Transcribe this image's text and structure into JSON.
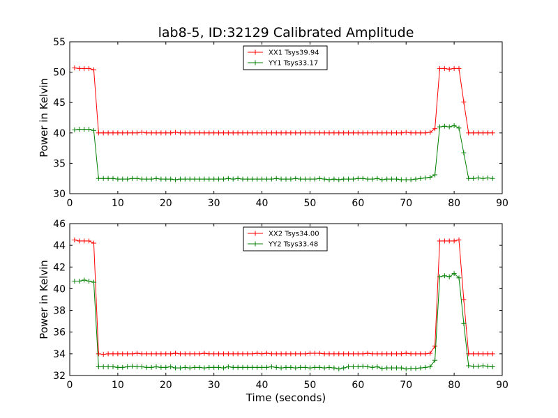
{
  "chart_data": [
    {
      "type": "line",
      "title": "lab8-5, ID:32129 Calibrated Amplitude",
      "xlabel": "",
      "ylabel": "Power in Kelvin",
      "xlim": [
        0,
        90
      ],
      "ylim": [
        30,
        55
      ],
      "xticks": [
        0,
        10,
        20,
        30,
        40,
        50,
        60,
        70,
        80,
        90
      ],
      "yticks": [
        30,
        35,
        40,
        45,
        50,
        55
      ],
      "grid": false,
      "legend": "top-center",
      "x": [
        1,
        2,
        3,
        4,
        5,
        6,
        7,
        8,
        9,
        10,
        11,
        12,
        13,
        14,
        15,
        16,
        17,
        18,
        19,
        20,
        21,
        22,
        23,
        24,
        25,
        26,
        27,
        28,
        29,
        30,
        31,
        32,
        33,
        34,
        35,
        36,
        37,
        38,
        39,
        40,
        41,
        42,
        43,
        44,
        45,
        46,
        47,
        48,
        49,
        50,
        51,
        52,
        53,
        54,
        55,
        56,
        57,
        58,
        59,
        60,
        61,
        62,
        63,
        64,
        65,
        66,
        67,
        68,
        69,
        70,
        71,
        72,
        73,
        74,
        75,
        76,
        77,
        78,
        79,
        80,
        81,
        82,
        83,
        84,
        85,
        86,
        87,
        88
      ],
      "series": [
        {
          "name": "XX1 Tsys39.94",
          "color": "#ff0000",
          "values": [
            50.7,
            50.6,
            50.6,
            50.6,
            50.4,
            40.0,
            40.0,
            40.0,
            40.0,
            40.0,
            40.0,
            40.0,
            40.0,
            40.0,
            40.1,
            40.0,
            40.0,
            40.0,
            40.0,
            40.0,
            40.0,
            40.1,
            40.0,
            40.0,
            40.0,
            40.0,
            40.0,
            40.0,
            40.0,
            40.0,
            40.0,
            40.0,
            40.0,
            40.0,
            40.0,
            40.0,
            40.0,
            40.0,
            40.0,
            40.0,
            40.0,
            40.0,
            40.0,
            40.0,
            40.0,
            40.0,
            40.0,
            40.0,
            40.0,
            40.0,
            40.0,
            40.0,
            40.0,
            40.0,
            40.0,
            40.0,
            40.0,
            40.0,
            40.0,
            40.0,
            40.0,
            40.0,
            40.0,
            40.0,
            40.0,
            40.0,
            40.0,
            40.0,
            40.0,
            40.1,
            40.0,
            40.0,
            40.0,
            40.0,
            40.1,
            40.7,
            50.6,
            50.6,
            50.5,
            50.6,
            50.6,
            45.1,
            40.0,
            40.0,
            40.0,
            40.0,
            40.0,
            40.0
          ]
        },
        {
          "name": "YY1 Tsys33.17",
          "color": "#008000",
          "values": [
            40.5,
            40.6,
            40.6,
            40.6,
            40.4,
            32.5,
            32.5,
            32.5,
            32.5,
            32.4,
            32.4,
            32.4,
            32.5,
            32.5,
            32.4,
            32.4,
            32.4,
            32.5,
            32.4,
            32.4,
            32.4,
            32.3,
            32.4,
            32.4,
            32.4,
            32.4,
            32.4,
            32.4,
            32.4,
            32.4,
            32.4,
            32.4,
            32.5,
            32.4,
            32.5,
            32.4,
            32.4,
            32.4,
            32.4,
            32.4,
            32.4,
            32.4,
            32.5,
            32.4,
            32.4,
            32.4,
            32.5,
            32.4,
            32.4,
            32.4,
            32.4,
            32.5,
            32.4,
            32.3,
            32.4,
            32.3,
            32.4,
            32.4,
            32.4,
            32.5,
            32.5,
            32.4,
            32.4,
            32.5,
            32.3,
            32.4,
            32.4,
            32.4,
            32.3,
            32.3,
            32.3,
            32.4,
            32.5,
            32.6,
            32.7,
            33.1,
            41.0,
            41.1,
            41.0,
            41.2,
            40.8,
            36.7,
            32.5,
            32.5,
            32.6,
            32.5,
            32.6,
            32.5
          ]
        }
      ]
    },
    {
      "type": "line",
      "title": "",
      "xlabel": "Time (seconds)",
      "ylabel": "Power in Kelvin",
      "xlim": [
        0,
        90
      ],
      "ylim": [
        32,
        46
      ],
      "xticks": [
        0,
        10,
        20,
        30,
        40,
        50,
        60,
        70,
        80,
        90
      ],
      "yticks": [
        32,
        34,
        36,
        38,
        40,
        42,
        44,
        46
      ],
      "grid": false,
      "legend": "top-center",
      "x": [
        1,
        2,
        3,
        4,
        5,
        6,
        7,
        8,
        9,
        10,
        11,
        12,
        13,
        14,
        15,
        16,
        17,
        18,
        19,
        20,
        21,
        22,
        23,
        24,
        25,
        26,
        27,
        28,
        29,
        30,
        31,
        32,
        33,
        34,
        35,
        36,
        37,
        38,
        39,
        40,
        41,
        42,
        43,
        44,
        45,
        46,
        47,
        48,
        49,
        50,
        51,
        52,
        53,
        54,
        55,
        56,
        57,
        58,
        59,
        60,
        61,
        62,
        63,
        64,
        65,
        66,
        67,
        68,
        69,
        70,
        71,
        72,
        73,
        74,
        75,
        76,
        77,
        78,
        79,
        80,
        81,
        82,
        83,
        84,
        85,
        86,
        87,
        88
      ],
      "series": [
        {
          "name": "XX2 Tsys34.00",
          "color": "#ff0000",
          "values": [
            44.5,
            44.4,
            44.4,
            44.4,
            44.2,
            34.0,
            33.95,
            34.0,
            34.0,
            34.0,
            34.0,
            34.0,
            34.0,
            34.05,
            34.0,
            34.0,
            34.0,
            34.0,
            34.0,
            34.0,
            34.0,
            34.05,
            34.0,
            34.0,
            34.0,
            34.0,
            34.0,
            34.05,
            34.0,
            34.0,
            34.0,
            34.0,
            34.0,
            34.0,
            34.0,
            34.0,
            34.0,
            34.0,
            34.05,
            34.0,
            34.05,
            34.0,
            34.0,
            34.0,
            34.0,
            34.0,
            34.0,
            34.0,
            34.0,
            34.05,
            34.05,
            34.05,
            34.0,
            34.0,
            34.0,
            34.0,
            34.0,
            34.0,
            34.0,
            34.0,
            34.0,
            34.05,
            34.0,
            34.0,
            34.0,
            34.0,
            34.0,
            34.0,
            34.0,
            34.05,
            34.0,
            34.0,
            34.0,
            34.0,
            34.05,
            34.7,
            44.4,
            44.4,
            44.4,
            44.4,
            44.5,
            39.0,
            34.0,
            34.0,
            34.0,
            34.0,
            34.0,
            34.0
          ]
        },
        {
          "name": "YY2 Tsys33.48",
          "color": "#008000",
          "values": [
            40.7,
            40.7,
            40.8,
            40.7,
            40.6,
            32.8,
            32.8,
            32.8,
            32.8,
            32.75,
            32.75,
            32.8,
            32.85,
            32.8,
            32.8,
            32.75,
            32.75,
            32.8,
            32.75,
            32.75,
            32.8,
            32.7,
            32.7,
            32.75,
            32.7,
            32.75,
            32.75,
            32.7,
            32.75,
            32.75,
            32.75,
            32.7,
            32.8,
            32.75,
            32.75,
            32.75,
            32.75,
            32.75,
            32.75,
            32.75,
            32.75,
            32.8,
            32.75,
            32.7,
            32.75,
            32.75,
            32.7,
            32.75,
            32.75,
            32.7,
            32.75,
            32.75,
            32.7,
            32.75,
            32.7,
            32.6,
            32.7,
            32.8,
            32.8,
            32.8,
            32.85,
            32.8,
            32.75,
            32.8,
            32.65,
            32.7,
            32.7,
            32.7,
            32.7,
            32.6,
            32.65,
            32.65,
            32.7,
            32.75,
            32.8,
            33.4,
            41.1,
            41.2,
            41.1,
            41.4,
            41.0,
            36.8,
            32.9,
            32.85,
            32.85,
            32.9,
            32.85,
            32.8
          ]
        }
      ]
    }
  ]
}
